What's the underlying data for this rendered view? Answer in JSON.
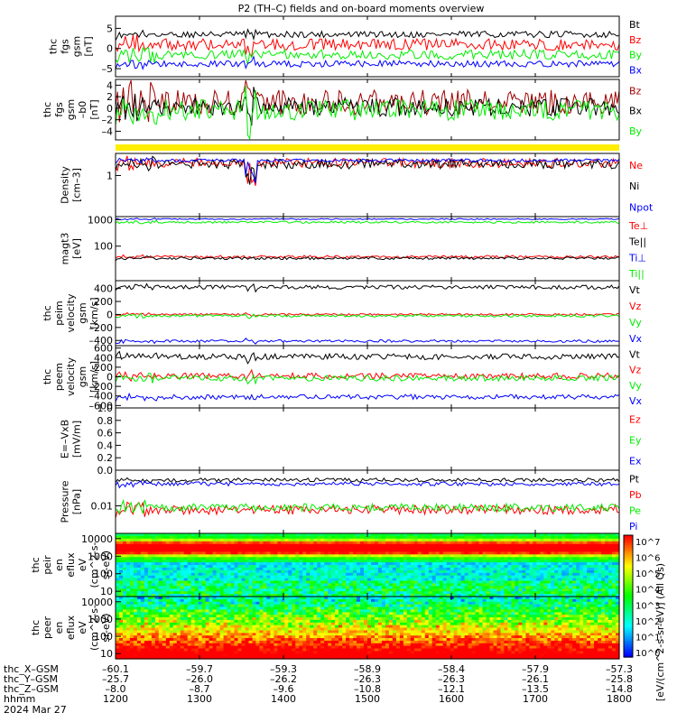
{
  "title": "P2 (TH–C) fields and on-board moments overview",
  "colors": {
    "black": "#000000",
    "red": "#ff0000",
    "green": "#00ee00",
    "blue": "#0000ff",
    "darkred": "#a00000",
    "yellow": "#ffee00"
  },
  "chart_data": [
    {
      "id": "p1",
      "type": "line",
      "ylabel": [
        "thc",
        "fgs",
        "gsm",
        "[nT]"
      ],
      "ylim": [
        -7,
        8
      ],
      "yticks": [
        5,
        0,
        -5
      ],
      "ytick_labels": [
        "5",
        "0",
        "–5"
      ],
      "log": false,
      "series": [
        {
          "name": "Bt",
          "color": "black",
          "level": 3.5,
          "noise": 0.8
        },
        {
          "name": "Bz",
          "color": "red",
          "level": 1.0,
          "noise": 1.4
        },
        {
          "name": "By",
          "color": "green",
          "level": -1.5,
          "noise": 1.2
        },
        {
          "name": "Bx",
          "color": "blue",
          "level": -3.8,
          "noise": 0.8
        }
      ]
    },
    {
      "id": "p2",
      "type": "line",
      "ylabel": [
        "thc",
        "fgs",
        "gsm",
        "–b0",
        "[nT]"
      ],
      "ylim": [
        -5.5,
        5
      ],
      "yticks": [
        4,
        2,
        0,
        -2,
        -4
      ],
      "ytick_labels": [
        "4",
        "2",
        "0",
        "–2",
        "–4"
      ],
      "log": false,
      "series": [
        {
          "name": "Bz",
          "color": "darkred",
          "level": 1.0,
          "noise": 2.2
        },
        {
          "name": "Bx",
          "color": "black",
          "level": 0.2,
          "noise": 1.6
        },
        {
          "name": "By",
          "color": "green",
          "level": -0.3,
          "noise": 1.8
        }
      ]
    },
    {
      "id": "p3",
      "type": "line",
      "ylabel": [
        "Density",
        "[cm–3]"
      ],
      "ylim": [
        0.05,
        5
      ],
      "yticks": [
        1
      ],
      "ytick_labels": [
        "1"
      ],
      "log": true,
      "series": [
        {
          "name": "Ne",
          "color": "red",
          "level": 2.5,
          "noise": 0.15
        },
        {
          "name": "Ni",
          "color": "black",
          "level": 2.3,
          "noise": 0.15
        },
        {
          "name": "Npot",
          "color": "blue",
          "level": 3.0,
          "noise": 0.05
        }
      ]
    },
    {
      "id": "p4",
      "type": "line",
      "ylabel": [
        "magt3",
        "[eV]"
      ],
      "ylim": [
        5,
        1300
      ],
      "yticks": [
        1000,
        100
      ],
      "ytick_labels": [
        "1000",
        "100"
      ],
      "log": true,
      "series": [
        {
          "name": "Te⊥",
          "color": "red",
          "level": 40,
          "noise": 0.05
        },
        {
          "name": "Te||",
          "color": "black",
          "level": 35,
          "noise": 0.05
        },
        {
          "name": "Ti⊥",
          "color": "blue",
          "level": 1050,
          "noise": 0.02
        },
        {
          "name": "Ti||",
          "color": "green",
          "level": 800,
          "noise": 0.04
        }
      ]
    },
    {
      "id": "p5",
      "type": "line",
      "ylabel": [
        "thc",
        "peim",
        "velocity",
        "gsm",
        "[km/s]"
      ],
      "ylim": [
        -480,
        520
      ],
      "yticks": [
        400,
        200,
        0,
        -200,
        -400
      ],
      "ytick_labels": [
        "400",
        "200",
        "0",
        "–200",
        "–400"
      ],
      "log": false,
      "series": [
        {
          "name": "Vt",
          "color": "black",
          "level": 420,
          "noise": 30
        },
        {
          "name": "Vz",
          "color": "red",
          "level": 0,
          "noise": 15
        },
        {
          "name": "Vy",
          "color": "green",
          "level": -20,
          "noise": 20
        },
        {
          "name": "Vx",
          "color": "blue",
          "level": -410,
          "noise": 20
        }
      ]
    },
    {
      "id": "p6",
      "type": "line",
      "ylabel": [
        "thc",
        "peem",
        "velocity",
        "gsm",
        "[km/s]"
      ],
      "ylim": [
        -650,
        650
      ],
      "yticks": [
        600,
        400,
        200,
        0,
        -200,
        -400,
        -600
      ],
      "ytick_labels": [
        "600",
        "400",
        "200",
        "0",
        "–200",
        "–400",
        "–600"
      ],
      "log": false,
      "series": [
        {
          "name": "Vt",
          "color": "black",
          "level": 420,
          "noise": 60
        },
        {
          "name": "Vz",
          "color": "red",
          "level": 20,
          "noise": 60
        },
        {
          "name": "Vy",
          "color": "green",
          "level": -30,
          "noise": 60
        },
        {
          "name": "Vx",
          "color": "blue",
          "level": -420,
          "noise": 50
        }
      ]
    },
    {
      "id": "p7",
      "type": "line",
      "ylabel": [
        "E=–VxB",
        "[mV/m]"
      ],
      "ylim": [
        0,
        1.0
      ],
      "yticks": [
        1.0,
        0.8,
        0.6,
        0.4,
        0.2,
        0.0
      ],
      "ytick_labels": [
        "1.0",
        "0.8",
        "0.6",
        "0.4",
        "0.2",
        "0.0"
      ],
      "log": false,
      "series": [
        {
          "name": "Ez",
          "color": "red"
        },
        {
          "name": "Ey",
          "color": "green"
        },
        {
          "name": "Ex",
          "color": "blue"
        }
      ]
    },
    {
      "id": "p8",
      "type": "line",
      "ylabel": [
        "Pressure",
        "[nPa]"
      ],
      "ylim": [
        0.002,
        0.08
      ],
      "yticks": [
        0.01
      ],
      "ytick_labels": [
        "0.01"
      ],
      "log": true,
      "series": [
        {
          "name": "Pt",
          "color": "black",
          "level": 0.045,
          "noise": 0.05
        },
        {
          "name": "Pb",
          "color": "red",
          "level": 0.008,
          "noise": 0.12
        },
        {
          "name": "Pe",
          "color": "green",
          "level": 0.009,
          "noise": 0.1
        },
        {
          "name": "Pi",
          "color": "blue",
          "level": 0.036,
          "noise": 0.05
        }
      ]
    },
    {
      "id": "p9",
      "type": "heatmap",
      "ylabel": [
        "thc",
        "peir",
        "en",
        "eflux",
        "eV",
        "(cm^2-s-",
        "sr-eV)"
      ],
      "ylim": [
        5,
        20000
      ],
      "yticks": [
        10000,
        1000,
        100,
        10
      ],
      "ytick_labels": [
        "10000",
        "1000",
        "100",
        "10"
      ],
      "log": true
    },
    {
      "id": "p10",
      "type": "heatmap",
      "ylabel": [
        "thc",
        "peer",
        "en",
        "eflux",
        "eV",
        "(cm^2-s-",
        "sr-eV)"
      ],
      "ylim": [
        5,
        20000
      ],
      "yticks": [
        10000,
        1000,
        100,
        10
      ],
      "ytick_labels": [
        "10000",
        "1000",
        "100",
        "10"
      ],
      "log": true
    }
  ],
  "colorbar": {
    "label": "[eV/(cm^2-s-sr-eV)] (All Qs)",
    "ticks": [
      "10^7",
      "10^6",
      "10^5",
      "10^4",
      "10^3",
      "10^2",
      "10^1",
      "10^0"
    ]
  },
  "xaxis": {
    "rows": [
      {
        "label": "thc_X–GSM",
        "values": [
          "–60.1",
          "–59.7",
          "–59.3",
          "–58.9",
          "–58.4",
          "–57.9",
          "–57.3"
        ]
      },
      {
        "label": "thc_Y–GSM",
        "values": [
          "–25.7",
          "–26.0",
          "–26.2",
          "–26.3",
          "–26.3",
          "–26.1",
          "–25.8"
        ]
      },
      {
        "label": "thc_Z–GSM",
        "values": [
          "–8.0",
          "–8.7",
          "–9.6",
          "–10.8",
          "–12.1",
          "–13.5",
          "–14.8"
        ]
      },
      {
        "label": "hhmm",
        "values": [
          "1200",
          "1300",
          "1400",
          "1500",
          "1600",
          "1700",
          "1800"
        ]
      }
    ],
    "date": "2024 Mar 27",
    "times": [
      1200,
      1300,
      1400,
      1500,
      1600,
      1700,
      1800
    ]
  }
}
